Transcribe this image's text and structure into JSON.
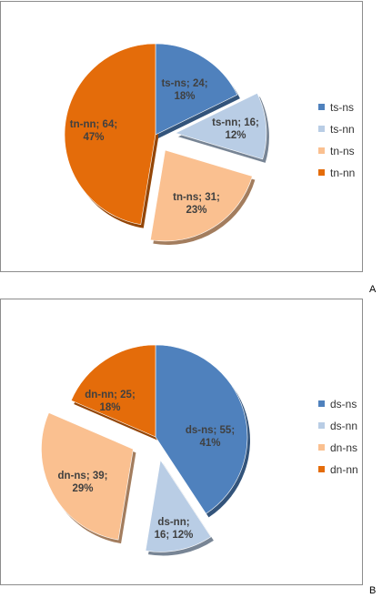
{
  "figure": {
    "panel_a_letter": "A",
    "panel_b_letter": "B"
  },
  "colors": {
    "ns_dark": "#4f81bd",
    "nn_light": "#b9cde5",
    "light_orange": "#fac090",
    "dark_orange": "#e46c0a"
  },
  "chart_data": [
    {
      "type": "pie",
      "panel": "A",
      "labels": [
        "ts-ns",
        "ts-nn",
        "tn-ns",
        "tn-nn"
      ],
      "values": [
        24,
        16,
        31,
        64
      ],
      "percents": [
        18,
        12,
        23,
        47
      ],
      "data_labels": [
        [
          "ts-ns; 24;",
          "18%"
        ],
        [
          "ts-nn; 16;",
          "12%"
        ],
        [
          "tn-ns; 31;",
          "23%"
        ],
        [
          "tn-nn; 64;",
          "47%"
        ]
      ],
      "exploded": [
        false,
        true,
        true,
        false
      ],
      "colors": [
        "#4f81bd",
        "#b9cde5",
        "#fac090",
        "#e46c0a"
      ],
      "legend_position": "right"
    },
    {
      "type": "pie",
      "panel": "B",
      "labels": [
        "ds-ns",
        "ds-nn",
        "dn-ns",
        "dn-nn"
      ],
      "values": [
        55,
        16,
        39,
        25
      ],
      "percents": [
        41,
        12,
        29,
        18
      ],
      "data_labels": [
        [
          "ds-ns; 55;",
          "41%"
        ],
        [
          "ds-nn;",
          "16; 12%"
        ],
        [
          "dn-ns; 39;",
          "29%"
        ],
        [
          "dn-nn; 25;",
          "18%"
        ]
      ],
      "exploded": [
        false,
        true,
        true,
        false
      ],
      "colors": [
        "#4f81bd",
        "#b9cde5",
        "#fac090",
        "#e46c0a"
      ],
      "legend_position": "right"
    }
  ]
}
